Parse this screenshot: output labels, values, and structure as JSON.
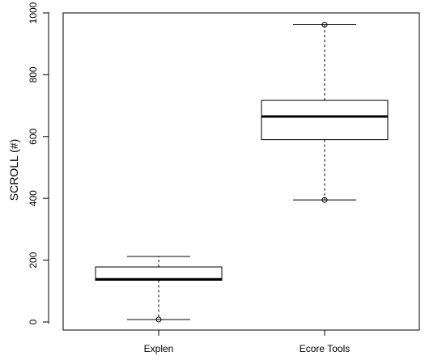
{
  "chart_data": {
    "type": "boxplot",
    "title": "",
    "xlabel": "",
    "ylabel": "SCROLL (#)",
    "ylim": [
      0,
      1000
    ],
    "yticks": [
      0,
      200,
      400,
      600,
      800,
      1000
    ],
    "grid": false,
    "categories": [
      "Explen",
      "Ecore Tools"
    ],
    "boxes": [
      {
        "category": "Explen",
        "whisker_low": 8,
        "q1": 135,
        "median": 138,
        "q3": 178,
        "whisker_high": 212,
        "outliers": [
          8
        ]
      },
      {
        "category": "Ecore Tools",
        "whisker_low": 395,
        "q1": 590,
        "median": 665,
        "q3": 717,
        "whisker_high": 962,
        "outliers": [
          395,
          962
        ]
      }
    ],
    "colors": {
      "stroke": "#000000",
      "fill": "#ffffff"
    }
  }
}
